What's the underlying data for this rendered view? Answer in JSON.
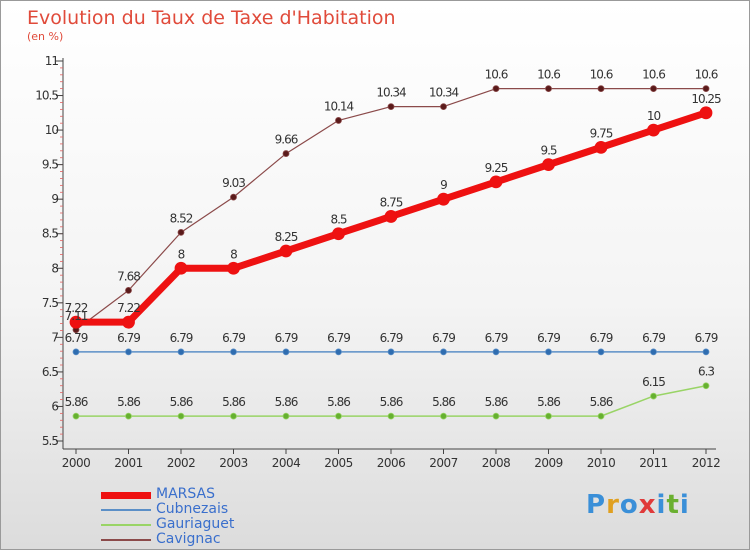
{
  "header": {
    "title": "Evolution du Taux de Taxe d'Habitation",
    "subtitle": "(en %)"
  },
  "logo": {
    "text": "Proxiti",
    "colors": [
      "#3a8fd8",
      "#e0a020",
      "#3a8fd8",
      "#e03a3a",
      "#3a8fd8",
      "#6ab030",
      "#3a8fd8"
    ]
  },
  "chart_data": {
    "type": "line",
    "x": [
      "2000",
      "2001",
      "2002",
      "2003",
      "2004",
      "2005",
      "2006",
      "2007",
      "2008",
      "2009",
      "2010",
      "2011",
      "2012"
    ],
    "ylim": [
      5.5,
      11
    ],
    "yticks": [
      "5.5",
      "6",
      "6.5",
      "7",
      "7.5",
      "8",
      "8.5",
      "9",
      "9.5",
      "10",
      "10.5",
      "11"
    ],
    "grid": false,
    "legend_position": "bottom-left",
    "series": [
      {
        "name": "MARSAS",
        "color": "#ee1111",
        "width": 7,
        "radius": 6,
        "values": [
          7.22,
          7.22,
          8,
          8,
          8.25,
          8.5,
          8.75,
          9,
          9.25,
          9.5,
          9.75,
          10,
          10.25
        ],
        "labels": [
          "7.22",
          "7.22",
          "8",
          "8",
          "8.25",
          "8.5",
          "8.75",
          "9",
          "9.25",
          "9.5",
          "9.75",
          "10",
          "10.25"
        ]
      },
      {
        "name": "Cubnezais",
        "color": "#5b8fc7",
        "width": 1.5,
        "radius": 3,
        "values": [
          6.79,
          6.79,
          6.79,
          6.79,
          6.79,
          6.79,
          6.79,
          6.79,
          6.79,
          6.79,
          6.79,
          6.79,
          6.79
        ],
        "labels": [
          "6.79",
          "6.79",
          "6.79",
          "6.79",
          "6.79",
          "6.79",
          "6.79",
          "6.79",
          "6.79",
          "6.79",
          "6.79",
          "6.79",
          "6.79"
        ]
      },
      {
        "name": "Gauriaguet",
        "color": "#99d466",
        "width": 1.5,
        "radius": 3,
        "values": [
          5.86,
          5.86,
          5.86,
          5.86,
          5.86,
          5.86,
          5.86,
          5.86,
          5.86,
          5.86,
          5.86,
          6.15,
          6.3
        ],
        "labels": [
          "5.86",
          "5.86",
          "5.86",
          "5.86",
          "5.86",
          "5.86",
          "5.86",
          "5.86",
          "5.86",
          "5.86",
          "5.86",
          "6.15",
          "6.3"
        ]
      },
      {
        "name": "Cavignac",
        "color": "#8b4a4a",
        "width": 1.2,
        "radius": 3,
        "values": [
          7.11,
          7.68,
          8.52,
          9.03,
          9.66,
          10.14,
          10.34,
          10.34,
          10.6,
          10.6,
          10.6,
          10.6,
          10.6
        ],
        "labels": [
          "7.11",
          "7.68",
          "8.52",
          "9.03",
          "9.66",
          "10.14",
          "10.34",
          "10.34",
          "10.6",
          "10.6",
          "10.6",
          "10.6",
          "10.6"
        ]
      }
    ]
  }
}
